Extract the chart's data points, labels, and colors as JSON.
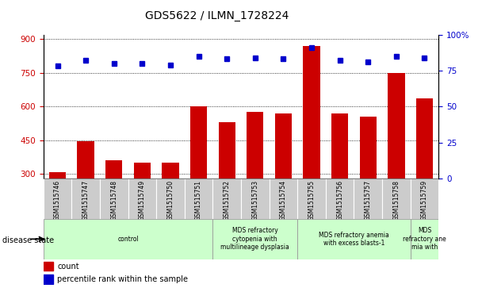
{
  "title": "GDS5622 / ILMN_1728224",
  "samples": [
    "GSM1515746",
    "GSM1515747",
    "GSM1515748",
    "GSM1515749",
    "GSM1515750",
    "GSM1515751",
    "GSM1515752",
    "GSM1515753",
    "GSM1515754",
    "GSM1515755",
    "GSM1515756",
    "GSM1515757",
    "GSM1515758",
    "GSM1515759"
  ],
  "counts": [
    308,
    445,
    362,
    352,
    352,
    600,
    530,
    575,
    570,
    870,
    570,
    555,
    750,
    635
  ],
  "percentile_ranks": [
    78,
    82,
    80,
    80,
    79,
    85,
    83,
    84,
    83,
    91,
    82,
    81,
    85,
    84
  ],
  "ylim_left": [
    280,
    920
  ],
  "ylim_right": [
    0,
    100
  ],
  "yticks_left": [
    300,
    450,
    600,
    750,
    900
  ],
  "yticks_right": [
    0,
    25,
    50,
    75,
    100
  ],
  "bar_color": "#cc0000",
  "dot_color": "#0000cc",
  "sample_bg_color": "#cccccc",
  "disease_groups": [
    {
      "label": "control",
      "start": 0,
      "end": 6,
      "color": "#ccffcc"
    },
    {
      "label": "MDS refractory\ncytopenia with\nmultilineage dysplasia",
      "start": 6,
      "end": 9,
      "color": "#ccffcc"
    },
    {
      "label": "MDS refractory anemia\nwith excess blasts-1",
      "start": 9,
      "end": 13,
      "color": "#ccffcc"
    },
    {
      "label": "MDS\nrefractory ane\nmia with",
      "start": 13,
      "end": 14,
      "color": "#ccffcc"
    }
  ],
  "xlabel_disease": "disease state",
  "legend_count": "count",
  "legend_pct": "percentile rank within the sample"
}
